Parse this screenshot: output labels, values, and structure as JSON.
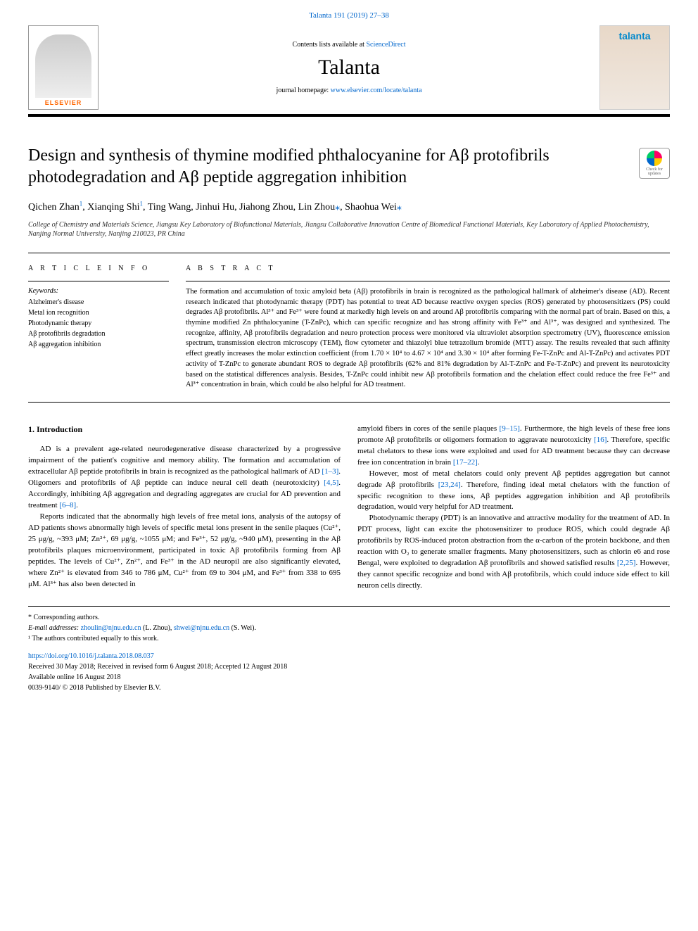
{
  "header": {
    "citation": "Talanta 191 (2019) 27–38",
    "contents_prefix": "Contents lists available at ",
    "contents_link": "ScienceDirect",
    "journal_name": "Talanta",
    "homepage_prefix": "journal homepage: ",
    "homepage_url": "www.elsevier.com/locate/talanta",
    "elsevier": "ELSEVIER",
    "cover_label": "talanta"
  },
  "article": {
    "title": "Design and synthesis of thymine modified phthalocyanine for Aβ protofibrils photodegradation and Aβ peptide aggregation inhibition",
    "check_updates": "Check for updates",
    "authors_html": "Qichen Zhan¹, Xianqing Shi¹, Ting Wang, Jinhui Hu, Jiahong Zhou, Lin Zhou*, Shaohua Wei*",
    "affiliation": "College of Chemistry and Materials Science, Jiangsu Key Laboratory of Biofunctional Materials, Jiangsu Collaborative Innovation Centre of Biomedical Functional Materials, Key Laboratory of Applied Photochemistry, Nanjing Normal University, Nanjing 210023, PR China"
  },
  "info": {
    "label": "A R T I C L E  I N F O",
    "keywords_label": "Keywords:",
    "keywords": [
      "Alzheimer's disease",
      "Metal ion recognition",
      "Photodynamic therapy",
      "Aβ protofibrils degradation",
      "Aβ aggregation inhibition"
    ]
  },
  "abstract": {
    "label": "A B S T R A C T",
    "text": "The formation and accumulation of toxic amyloid beta (Aβ) protofibrils in brain is recognized as the pathological hallmark of alzheimer's disease (AD). Recent research indicated that photodynamic therapy (PDT) has potential to treat AD because reactive oxygen species (ROS) generated by photosensitizers (PS) could degrades Aβ protofibrils. Al³⁺ and Fe³⁺ were found at markedly high levels on and around Aβ protofibrils comparing with the normal part of brain. Based on this, a thymine modified Zn phthalocyanine (T-ZnPc), which can specific recognize and has strong affinity with Fe³⁺ and Al³⁺, was designed and synthesized. The recognize, affinity, Aβ protofibrils degradation and neuro protection process were monitored via ultraviolet absorption spectrometry (UV), fluorescence emission spectrum, transmission electron microscopy (TEM), flow cytometer and thiazolyl blue tetrazolium bromide (MTT) assay. The results revealed that such affinity effect greatly increases the molar extinction coefficient (from 1.70 × 10⁴ to 4.67 × 10⁴ and 3.30 × 10⁴ after forming Fe-T-ZnPc and Al-T-ZnPc) and activates PDT activity of T-ZnPc to generate abundant ROS to degrade Aβ protofibrils (62% and 81% degradation by Al-T-ZnPc and Fe-T-ZnPc) and prevent its neurotoxicity based on the statistical differences analysis. Besides, T-ZnPc could inhibit new Aβ protofibrils formation and the chelation effect could reduce the free Fe³⁺ and Al³⁺ concentration in brain, which could be also helpful for AD treatment."
  },
  "body": {
    "heading": "1. Introduction",
    "p1": "AD is a prevalent age-related neurodegenerative disease characterized by a progressive impairment of the patient's cognitive and memory ability. The formation and accumulation of extracellular Aβ peptide protofibrils in brain is recognized as the pathological hallmark of AD ",
    "r1": "[1–3]",
    "p1b": ". Oligomers and protofibrils of Aβ peptide can induce neural cell death (neurotoxicity) ",
    "r2": "[4,5]",
    "p1c": ". Accordingly, inhibiting Aβ aggregation and degrading aggregates are crucial for AD prevention and treatment ",
    "r3": "[6–8]",
    "p1d": ".",
    "p2a": "Reports indicated that the abnormally high levels of free metal ions, analysis of the autopsy of AD patients shows abnormally high levels of specific metal ions present in the senile plaques (Cu²⁺, 25 μg/g, ~393 μM; Zn²⁺, 69 μg/g, ~1055 μM; and Fe³⁺, 52 μg/g, ~940 μM), presenting in the Aβ protofibrils plaques microenvironment, participated in toxic Aβ protofibrils forming from Aβ peptides. The levels of Cu²⁺, Zn²⁺, and Fe³⁺ in the AD neuropil are also significantly elevated, where Zn²⁺ is elevated from 346 to 786 μM, Cu²⁺ from 69 to 304 μM, and Fe³⁺ from 338 to 695 μM. Al³⁺ has also been detected in",
    "p3a": "amyloid fibers in cores of the senile plaques ",
    "r4": "[9–15]",
    "p3b": ". Furthermore, the high levels of these free ions promote Aβ protofibrils or oligomers formation to aggravate neurotoxicity ",
    "r5": "[16]",
    "p3c": ". Therefore, specific metal chelators to these ions were exploited and used for AD treatment because they can decrease free ion concentration in brain ",
    "r6": "[17–22]",
    "p3d": ".",
    "p4a": "However, most of metal chelators could only prevent Aβ peptides aggregation but cannot degrade Aβ protofibrils ",
    "r7": "[23,24]",
    "p4b": ". Therefore, finding ideal metal chelators with the function of specific recognition to these ions, Aβ peptides aggregation inhibition and Aβ protofibrils degradation, would very helpful for AD treatment.",
    "p5a": "Photodynamic therapy (PDT) is an innovative and attractive modality for the treatment of AD. In PDT process, light can excite the photosensitizer to produce ROS, which could degrade Aβ protofibrils by ROS-induced proton abstraction from the α-carbon of the protein backbone, and then reaction with O₂ to generate smaller fragments. Many photosensitizers, such as chlorin e6 and rose Bengal, were exploited to degradation Aβ protofibrils and showed satisfied results ",
    "r8": "[2,25]",
    "p5b": ". However, they cannot specific recognize and bond with Aβ protofibrils, which could induce side effect to kill neuron cells directly."
  },
  "footer": {
    "corr": "* Corresponding authors.",
    "email_label": "E-mail addresses: ",
    "email1": "zhoulin@njnu.edu.cn",
    "email1_name": " (L. Zhou), ",
    "email2": "shwei@njnu.edu.cn",
    "email2_name": " (S. Wei).",
    "equal": "¹ The authors contributed equally to this work.",
    "doi": "https://doi.org/10.1016/j.talanta.2018.08.037",
    "received": "Received 30 May 2018; Received in revised form 6 August 2018; Accepted 12 August 2018",
    "available": "Available online 16 August 2018",
    "copyright": "0039-9140/ © 2018 Published by Elsevier B.V."
  },
  "colors": {
    "link": "#0066cc",
    "elsevier_orange": "#ff6600"
  }
}
